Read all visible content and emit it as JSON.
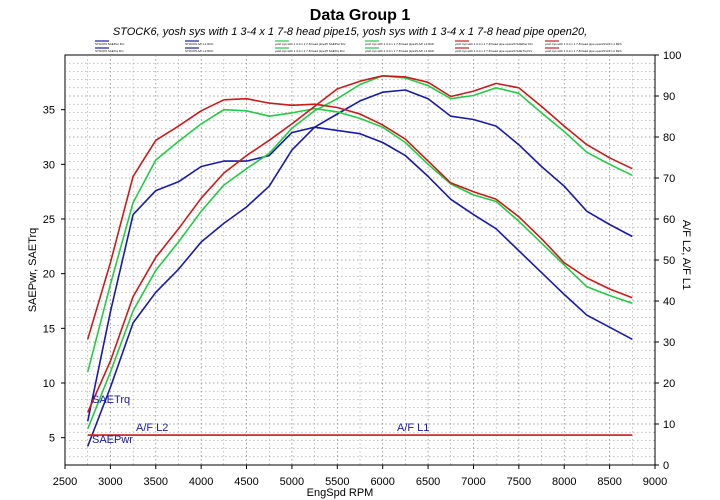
{
  "chart_data": {
    "type": "line",
    "title": "Data Group 1",
    "subtitle": "STOCK6, yosh sys with 1 3-4 x 1 7-8 head pipe15, yosh sys with 1 3-4 x 1 7-8 head pipe open20,",
    "xlabel": "EngSpd  RPM",
    "ylabel_left": "SAEPwr, SAETrq",
    "ylabel_right": "A/F L2, A/F L1",
    "xlim": [
      2500,
      9000
    ],
    "ylim_left": [
      2.5,
      40
    ],
    "ylim_right": [
      0,
      100
    ],
    "xticks": [
      2500,
      3000,
      3500,
      4000,
      4500,
      5000,
      5500,
      6000,
      6500,
      7000,
      7500,
      8000,
      8500,
      9000
    ],
    "yticks_left": [
      5,
      10,
      15,
      20,
      25,
      30,
      35
    ],
    "yticks_right": [
      0,
      10,
      20,
      30,
      40,
      50,
      60,
      70,
      80,
      90,
      100
    ],
    "grid": true,
    "legend_position": "top",
    "legend_entries": [
      "STOCK6 SAEPwr Drv",
      "STOCK6 A/F L1 Rich",
      "yosh sys with 1 3-4 x 1 7-8 head pipe15 SAEPwr Drv",
      "yosh sys with 1 3-4 x 1 7-8 head pipe15 A/F L2 Rich",
      "yosh sys with 1 3-4 x 1 7-8 head pipe open20 SAEPwr Drv",
      "yosh sys with 1 3-4 x 1 7-8 head pipe open20 A/F L1 Rich",
      "STOCK6 SAETrq Drv",
      "STOCK6 A/F L2 Rich",
      "yosh sys with 1 3-4 x 1 7-8 head pipe15 SAETrq Drv",
      "yosh sys with 1 3-4 x 1 7-8 head pipe15 A/F L1 Rich",
      "yosh sys with 1 3-4 x 1 7-8 head pipe open20 SAETrq Drv",
      "yosh sys with 1 3-4 x 1 7-8 head pipe open20 A/F L2 Rich"
    ],
    "annotations": [
      "SAETrq",
      "SAEPwr",
      "A/F L2",
      "A/F L1"
    ],
    "series": [
      {
        "name": "STOCK6 SAETrq",
        "color": "#1a1aaa",
        "x": [
          2750,
          3000,
          3250,
          3500,
          3750,
          4000,
          4250,
          4500,
          4750,
          5000,
          5250,
          5500,
          5750,
          6000,
          6250,
          6500,
          6750,
          7000,
          7250,
          7500,
          7750,
          8000,
          8250,
          8500,
          8750
        ],
        "y": [
          6.5,
          16.5,
          25.4,
          27.6,
          28.4,
          29.8,
          30.3,
          30.3,
          30.8,
          32.9,
          33.4,
          33.1,
          32.8,
          32.0,
          30.8,
          28.9,
          26.8,
          25.4,
          24.1,
          22.1,
          20.1,
          18.1,
          16.2,
          15.1,
          14.0
        ]
      },
      {
        "name": "STOCK6 SAEPwr",
        "color": "#1a1aaa",
        "x": [
          2750,
          3000,
          3250,
          3500,
          3750,
          4000,
          4250,
          4500,
          4750,
          5000,
          5250,
          5500,
          5750,
          6000,
          6250,
          6500,
          6750,
          7000,
          7250,
          7500,
          7750,
          8000,
          8250,
          8500,
          8750
        ],
        "y": [
          4.2,
          9.6,
          15.5,
          18.3,
          20.4,
          22.9,
          24.6,
          26.1,
          28.0,
          31.3,
          33.4,
          34.6,
          35.8,
          36.6,
          36.8,
          36.0,
          34.4,
          34.1,
          33.5,
          31.8,
          29.8,
          28.0,
          25.7,
          24.5,
          23.4
        ]
      },
      {
        "name": "yosh pipe15 SAETrq",
        "color": "#22cc44",
        "x": [
          2750,
          3000,
          3250,
          3500,
          3750,
          4000,
          4250,
          4500,
          4750,
          5000,
          5250,
          5500,
          5750,
          6000,
          6250,
          6500,
          6750,
          7000,
          7250,
          7500,
          7750,
          8000,
          8250,
          8500,
          8750
        ],
        "y": [
          11.0,
          19.0,
          26.5,
          30.4,
          32.1,
          33.7,
          35.0,
          34.9,
          34.4,
          34.7,
          35.1,
          34.8,
          34.2,
          33.4,
          32.0,
          30.0,
          28.2,
          27.2,
          26.6,
          24.8,
          22.8,
          20.8,
          18.8,
          18.0,
          17.3
        ]
      },
      {
        "name": "yosh pipe15 SAEPwr",
        "color": "#22cc44",
        "x": [
          2750,
          3000,
          3250,
          3500,
          3750,
          4000,
          4250,
          4500,
          4750,
          5000,
          5250,
          5500,
          5750,
          6000,
          6250,
          6500,
          6750,
          7000,
          7250,
          7500,
          7750,
          8000,
          8250,
          8500,
          8750
        ],
        "y": [
          5.8,
          11.0,
          16.6,
          20.3,
          22.9,
          25.7,
          28.1,
          29.6,
          31.0,
          33.3,
          34.9,
          36.0,
          37.3,
          38.1,
          37.9,
          37.2,
          36.0,
          36.3,
          37.0,
          36.5,
          34.7,
          33.0,
          31.1,
          30.0,
          29.0
        ]
      },
      {
        "name": "yosh pipe open20 SAETrq",
        "color": "#cc1a1a",
        "x": [
          2750,
          3000,
          3250,
          3500,
          3750,
          4000,
          4250,
          4500,
          4750,
          5000,
          5250,
          5500,
          5750,
          6000,
          6250,
          6500,
          6750,
          7000,
          7250,
          7500,
          7750,
          8000,
          8250,
          8500,
          8750
        ],
        "y": [
          14.0,
          21.0,
          28.9,
          32.2,
          33.5,
          34.9,
          35.9,
          36.0,
          35.6,
          35.4,
          35.5,
          35.2,
          34.6,
          33.6,
          32.3,
          30.3,
          28.3,
          27.5,
          26.8,
          25.2,
          23.2,
          21.0,
          19.6,
          18.6,
          17.8
        ]
      },
      {
        "name": "yosh pipe open20 SAEPwr",
        "color": "#cc1a1a",
        "x": [
          2750,
          3000,
          3250,
          3500,
          3750,
          4000,
          4250,
          4500,
          4750,
          5000,
          5250,
          5500,
          5750,
          6000,
          6250,
          6500,
          6750,
          7000,
          7250,
          7500,
          7750,
          8000,
          8250,
          8500,
          8750
        ],
        "y": [
          7.3,
          12.0,
          17.9,
          21.5,
          24.1,
          26.9,
          29.2,
          30.8,
          32.2,
          33.7,
          35.3,
          36.9,
          37.6,
          38.1,
          38.0,
          37.5,
          36.2,
          36.7,
          37.4,
          37.0,
          35.3,
          33.5,
          31.8,
          30.6,
          29.6
        ]
      },
      {
        "name": "A/F L1 / A/F L2",
        "color": "#cc1a1a",
        "axis": "right",
        "x": [
          2750,
          8750
        ],
        "y": [
          7.3,
          7.3
        ]
      }
    ]
  }
}
